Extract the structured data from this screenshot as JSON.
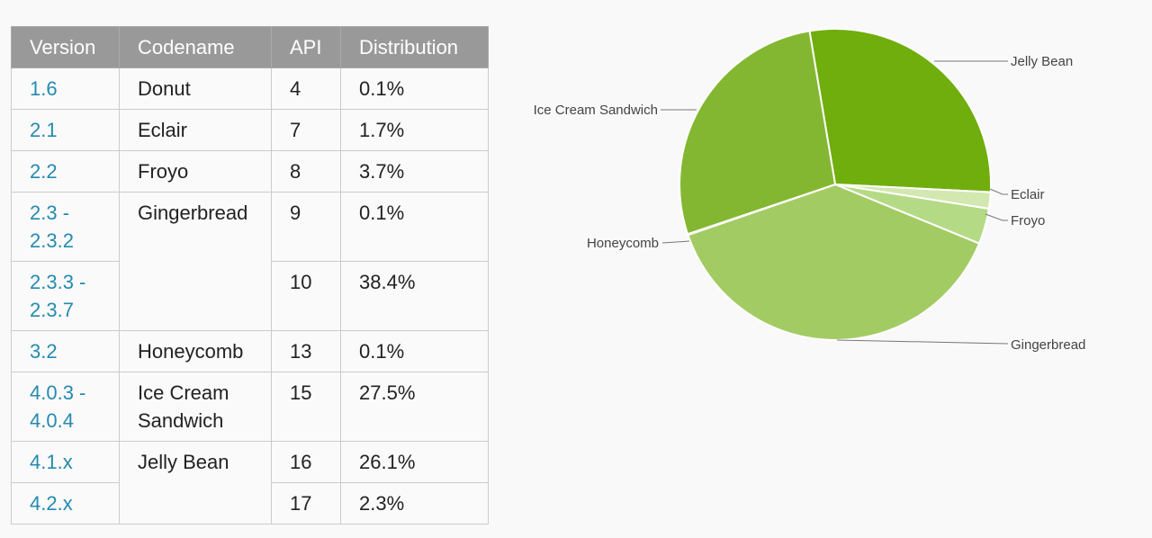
{
  "table": {
    "headers": [
      "Version",
      "Codename",
      "API",
      "Distribution"
    ],
    "rows": [
      {
        "version": "1.6",
        "codename": "Donut",
        "api": "4",
        "dist": "0.1%"
      },
      {
        "version": "2.1",
        "codename": "Eclair",
        "api": "7",
        "dist": "1.7%"
      },
      {
        "version": "2.2",
        "codename": "Froyo",
        "api": "8",
        "dist": "3.7%"
      },
      {
        "version": "2.3 - 2.3.2",
        "codename": "Gingerbread",
        "api": "9",
        "dist": "0.1%"
      },
      {
        "version": "2.3.3 - 2.3.7",
        "codename": "",
        "api": "10",
        "dist": "38.4%"
      },
      {
        "version": "3.2",
        "codename": "Honeycomb",
        "api": "13",
        "dist": "0.1%"
      },
      {
        "version": "4.0.3 - 4.0.4",
        "codename": "Ice Cream Sandwich",
        "api": "15",
        "dist": "27.5%"
      },
      {
        "version": "4.1.x",
        "codename": "Jelly Bean",
        "api": "16",
        "dist": "26.1%"
      },
      {
        "version": "4.2.x",
        "codename": "",
        "api": "17",
        "dist": "2.3%"
      }
    ]
  },
  "colors": {
    "header_bg": "#999999",
    "version_link": "#258aaf"
  },
  "chart_data": {
    "type": "pie",
    "slices": [
      {
        "label": "Jelly Bean",
        "value": 28.4,
        "color": "#6fae0c"
      },
      {
        "label": "Eclair",
        "value": 1.7,
        "color": "#d2e8b0"
      },
      {
        "label": "Froyo",
        "value": 3.7,
        "color": "#b5da85"
      },
      {
        "label": "Gingerbread",
        "value": 38.5,
        "color": "#a3cb63"
      },
      {
        "label": "Honeycomb",
        "value": 0.1,
        "color": "#9bc45a"
      },
      {
        "label": "Ice Cream Sandwich",
        "value": 27.5,
        "color": "#84b731"
      }
    ]
  }
}
